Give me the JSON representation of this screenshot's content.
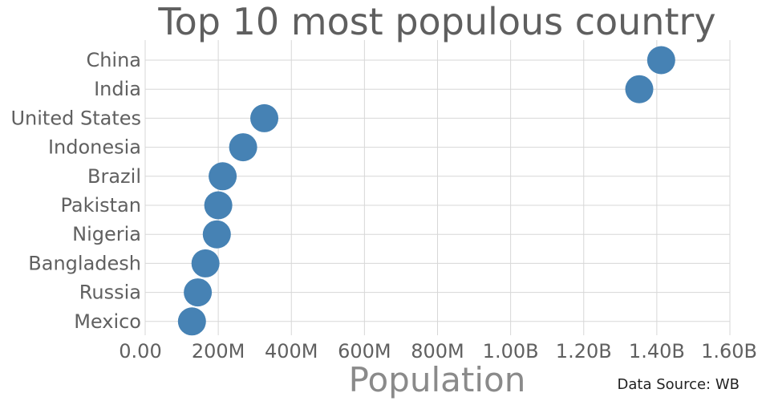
{
  "chart_data": {
    "type": "scatter",
    "title": "Top 10 most populous country",
    "xlabel": "Population",
    "ylabel": "",
    "source": "Data Source: WB",
    "xlim": [
      0,
      1600000000
    ],
    "x_ticks": [
      {
        "value": 0,
        "label": "0.00"
      },
      {
        "value": 200000000,
        "label": "200M"
      },
      {
        "value": 400000000,
        "label": "400M"
      },
      {
        "value": 600000000,
        "label": "600M"
      },
      {
        "value": 800000000,
        "label": "800M"
      },
      {
        "value": 1000000000,
        "label": "1.00B"
      },
      {
        "value": 1200000000,
        "label": "1.20B"
      },
      {
        "value": 1400000000,
        "label": "1.40B"
      },
      {
        "value": 1600000000,
        "label": "1.60B"
      }
    ],
    "categories": [
      "China",
      "India",
      "United States",
      "Indonesia",
      "Brazil",
      "Pakistan",
      "Nigeria",
      "Bangladesh",
      "Russia",
      "Mexico"
    ],
    "values": [
      1412000000,
      1352000000,
      326000000,
      268000000,
      212000000,
      200000000,
      196000000,
      165000000,
      144000000,
      128000000
    ],
    "grid": true,
    "marker_color": "#4682b4"
  }
}
